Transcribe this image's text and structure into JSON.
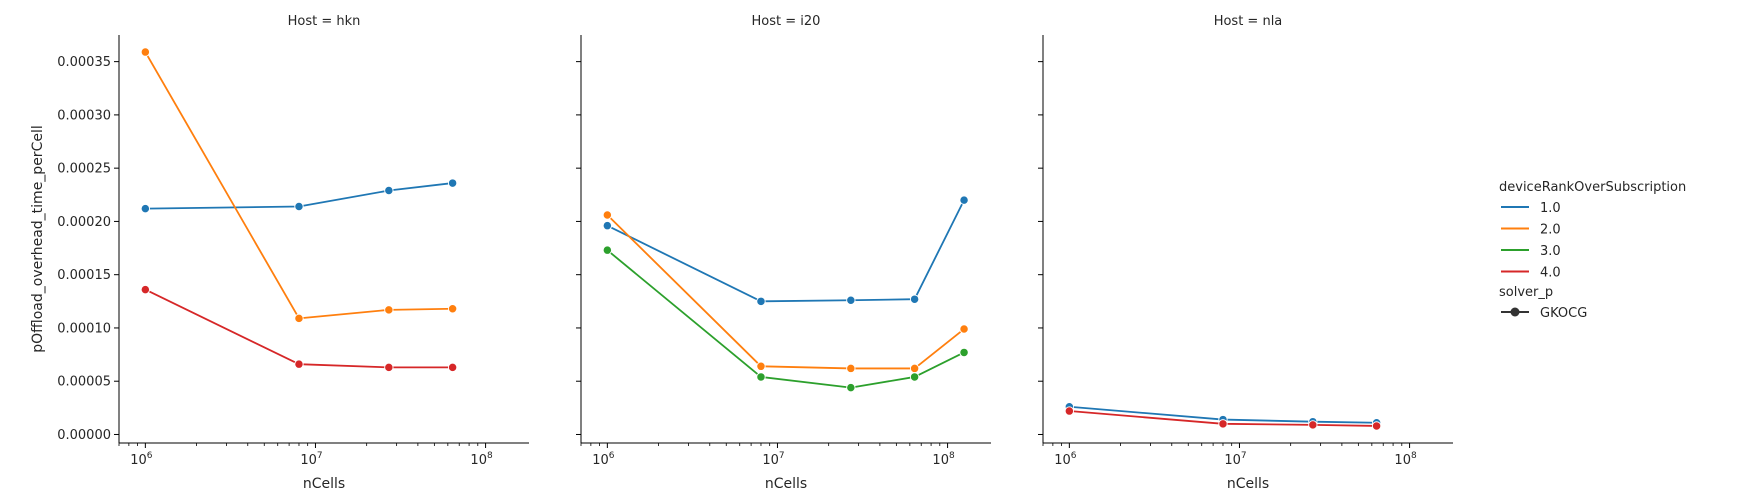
{
  "chart_data": {
    "type": "line",
    "ylabel": "pOffload_overhead_time_perCell",
    "x_scale": "log",
    "xlim": [
      700000,
      180000000
    ],
    "ylim": [
      -8e-06,
      0.000375
    ],
    "y_ticks": [
      "0.00000",
      "0.00005",
      "0.00010",
      "0.00015",
      "0.00020",
      "0.00025",
      "0.00030",
      "0.00035"
    ],
    "y_tick_values": [
      0,
      5e-05,
      0.0001,
      0.00015,
      0.0002,
      0.00025,
      0.0003,
      0.00035
    ],
    "legend": {
      "placement": "right",
      "hue_title": "deviceRankOverSubscription",
      "hue_entries": [
        {
          "label": "1.0",
          "color": "#1f77b4"
        },
        {
          "label": "2.0",
          "color": "#ff7f0e"
        },
        {
          "label": "3.0",
          "color": "#2ca02c"
        },
        {
          "label": "4.0",
          "color": "#d62728"
        }
      ],
      "style_title": "solver_p",
      "style_entries": [
        {
          "label": "GKOCG",
          "color": "#333333"
        }
      ]
    },
    "panels": [
      {
        "title": "Host = hkn",
        "xlabel": "nCells",
        "x_tick_values": [
          1000000,
          10000000,
          100000000
        ],
        "series": [
          {
            "name": "1.0",
            "color": "#1f77b4",
            "x": [
              1000000,
              8000000,
              27000000,
              64000000
            ],
            "y": [
              0.000212,
              0.000214,
              0.000229,
              0.000236
            ]
          },
          {
            "name": "2.0",
            "color": "#ff7f0e",
            "x": [
              1000000,
              8000000,
              27000000,
              64000000
            ],
            "y": [
              0.000359,
              0.000109,
              0.000117,
              0.000118
            ]
          },
          {
            "name": "4.0",
            "color": "#d62728",
            "x": [
              1000000,
              8000000,
              27000000,
              64000000
            ],
            "y": [
              0.000136,
              6.6e-05,
              6.3e-05,
              6.3e-05
            ]
          }
        ]
      },
      {
        "title": "Host = i20",
        "xlabel": "nCells",
        "x_tick_values": [
          1000000,
          10000000,
          100000000
        ],
        "series": [
          {
            "name": "1.0",
            "color": "#1f77b4",
            "x": [
              1000000,
              8000000,
              27000000,
              64000000,
              125000000
            ],
            "y": [
              0.000196,
              0.000125,
              0.000126,
              0.000127,
              0.00022
            ]
          },
          {
            "name": "2.0",
            "color": "#ff7f0e",
            "x": [
              1000000,
              8000000,
              27000000,
              64000000,
              125000000
            ],
            "y": [
              0.000206,
              6.4e-05,
              6.2e-05,
              6.2e-05,
              9.9e-05
            ]
          },
          {
            "name": "3.0",
            "color": "#2ca02c",
            "x": [
              1000000,
              8000000,
              27000000,
              64000000,
              125000000
            ],
            "y": [
              0.000173,
              5.4e-05,
              4.4e-05,
              5.4e-05,
              7.7e-05
            ]
          }
        ]
      },
      {
        "title": "Host = nla",
        "xlabel": "nCells",
        "x_tick_values": [
          1000000,
          10000000,
          100000000
        ],
        "series": [
          {
            "name": "1.0",
            "color": "#1f77b4",
            "x": [
              1000000,
              8000000,
              27000000,
              64000000
            ],
            "y": [
              2.6e-05,
              1.4e-05,
              1.2e-05,
              1.1e-05
            ]
          },
          {
            "name": "4.0",
            "color": "#d62728",
            "x": [
              1000000,
              8000000,
              27000000,
              64000000
            ],
            "y": [
              2.2e-05,
              1e-05,
              9e-06,
              8e-06
            ]
          }
        ]
      }
    ]
  }
}
